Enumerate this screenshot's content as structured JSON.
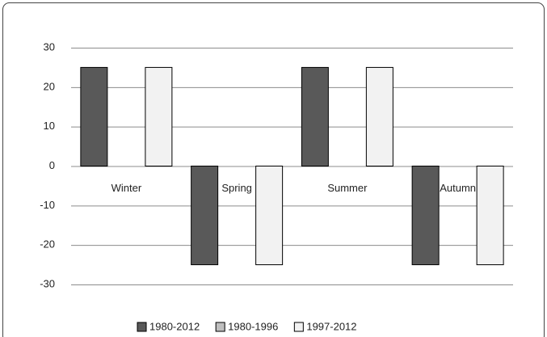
{
  "chart_data": {
    "type": "bar",
    "categories": [
      "Winter",
      "Spring",
      "Summer",
      "Autumn"
    ],
    "series": [
      {
        "name": "1980-2012",
        "color": "#595959",
        "values": [
          25,
          -25,
          25,
          -25
        ]
      },
      {
        "name": "1980-1996",
        "color": "#bfbfbf",
        "values": [
          0,
          0,
          0,
          0
        ]
      },
      {
        "name": "1997-2012",
        "color": "#f2f2f2",
        "values": [
          25,
          -25,
          25,
          -25
        ]
      }
    ],
    "ylim": [
      -30,
      30
    ],
    "yticks": [
      -30,
      -20,
      -10,
      0,
      10,
      20,
      30
    ],
    "grid": true,
    "legend": "bottom"
  }
}
